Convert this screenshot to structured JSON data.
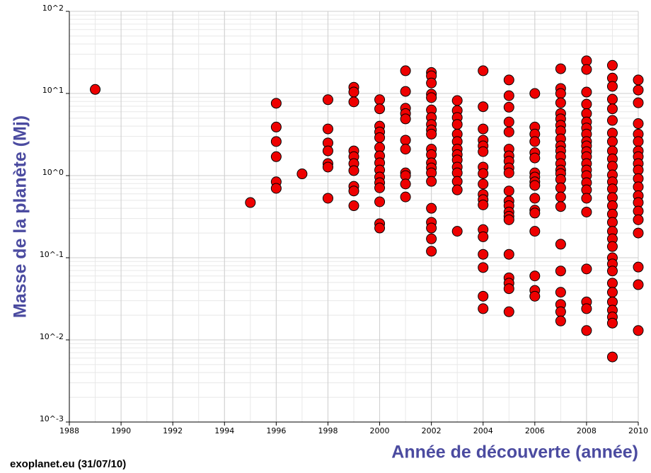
{
  "chart_data": {
    "type": "scatter",
    "xlabel": "Année de découverte (année)",
    "ylabel": "Masse de la planète (Mj)",
    "footer": "exoplanet.eu (31/07/10)",
    "color": "#ee0000",
    "ylog": true,
    "grid": true,
    "xlim": [
      1988,
      2010
    ],
    "ylim": [
      0.001,
      100
    ],
    "xticks": [
      1988,
      1990,
      1992,
      1994,
      1996,
      1998,
      2000,
      2002,
      2004,
      2006,
      2008,
      2010
    ],
    "yticks": [
      {
        "value": 0.001,
        "label": "10^-3"
      },
      {
        "value": 0.01,
        "label": "10^-2"
      },
      {
        "value": 0.1,
        "label": "10^-1"
      },
      {
        "value": 1,
        "label": "10^0"
      },
      {
        "value": 10,
        "label": "10^1"
      },
      {
        "value": 100,
        "label": "10^2"
      }
    ],
    "x": [
      1989,
      1995,
      1996,
      1996,
      1996,
      1996,
      1996,
      1996,
      1997,
      1998,
      1998,
      1998,
      1998,
      1998,
      1998,
      1998,
      1999,
      1999,
      1999,
      1999,
      1999,
      1999,
      1999,
      1999,
      1999,
      1999,
      2000,
      2000,
      2000,
      2000,
      2000,
      2000,
      2000,
      2000,
      2000,
      2000,
      2000,
      2000,
      2000,
      2000,
      2000,
      2001,
      2001,
      2001,
      2001,
      2001,
      2001,
      2001,
      2001,
      2001,
      2001,
      2001,
      2002,
      2002,
      2002,
      2002,
      2002,
      2002,
      2002,
      2002,
      2002,
      2002,
      2002,
      2002,
      2002,
      2002,
      2002,
      2002,
      2002,
      2002,
      2002,
      2002,
      2002,
      2003,
      2003,
      2003,
      2003,
      2003,
      2003,
      2003,
      2003,
      2003,
      2003,
      2003,
      2003,
      2003,
      2003,
      2004,
      2004,
      2004,
      2004,
      2004,
      2004,
      2004,
      2004,
      2004,
      2004,
      2004,
      2004,
      2004,
      2004,
      2004,
      2004,
      2004,
      2004,
      2005,
      2005,
      2005,
      2005,
      2005,
      2005,
      2005,
      2005,
      2005,
      2005,
      2005,
      2005,
      2005,
      2005,
      2005,
      2005,
      2005,
      2005,
      2005,
      2005,
      2005,
      2006,
      2006,
      2006,
      2006,
      2006,
      2006,
      2006,
      2006,
      2006,
      2006,
      2006,
      2006,
      2006,
      2006,
      2006,
      2006,
      2006,
      2007,
      2007,
      2007,
      2007,
      2007,
      2007,
      2007,
      2007,
      2007,
      2007,
      2007,
      2007,
      2007,
      2007,
      2007,
      2007,
      2007,
      2007,
      2007,
      2007,
      2007,
      2007,
      2007,
      2007,
      2007,
      2008,
      2008,
      2008,
      2008,
      2008,
      2008,
      2008,
      2008,
      2008,
      2008,
      2008,
      2008,
      2008,
      2008,
      2008,
      2008,
      2008,
      2008,
      2008,
      2008,
      2008,
      2008,
      2008,
      2009,
      2009,
      2009,
      2009,
      2009,
      2009,
      2009,
      2009,
      2009,
      2009,
      2009,
      2009,
      2009,
      2009,
      2009,
      2009,
      2009,
      2009,
      2009,
      2009,
      2009,
      2009,
      2009,
      2009,
      2009,
      2009,
      2009,
      2009,
      2009,
      2009,
      2009,
      2010,
      2010,
      2010,
      2010,
      2010,
      2010,
      2010,
      2010,
      2010,
      2010,
      2010,
      2010,
      2010,
      2010,
      2010,
      2010,
      2010,
      2010,
      2010,
      2010
    ],
    "values": [
      11.2,
      0.47,
      7.6,
      3.9,
      2.6,
      1.7,
      0.84,
      0.7,
      1.05,
      8.4,
      3.7,
      2.5,
      2.0,
      1.4,
      1.27,
      0.53,
      11.9,
      10.4,
      7.9,
      2.0,
      1.7,
      1.4,
      1.15,
      0.74,
      0.65,
      0.43,
      8.4,
      6.5,
      4.0,
      3.4,
      2.9,
      2.2,
      1.74,
      1.43,
      1.17,
      0.96,
      0.82,
      0.71,
      0.48,
      0.26,
      0.23,
      18.9,
      10.6,
      6.6,
      5.7,
      4.9,
      2.7,
      2.1,
      1.08,
      1.0,
      0.79,
      0.55,
      18,
      16.4,
      13.4,
      9.8,
      8.9,
      6.3,
      5.1,
      4.2,
      3.6,
      3.2,
      2.1,
      1.8,
      1.43,
      1.24,
      1.08,
      0.85,
      0.4,
      0.27,
      0.23,
      0.17,
      0.12,
      8.2,
      6.2,
      5.1,
      4.2,
      3.2,
      2.6,
      2.1,
      1.8,
      1.55,
      1.27,
      1.08,
      0.85,
      0.67,
      0.21,
      18.9,
      6.9,
      3.7,
      2.7,
      2.3,
      1.96,
      1.27,
      1.06,
      0.79,
      0.59,
      0.51,
      0.44,
      0.22,
      0.18,
      0.11,
      0.076,
      0.034,
      0.024,
      14.6,
      9.4,
      6.8,
      4.5,
      3.4,
      2.1,
      1.74,
      1.5,
      1.24,
      1.08,
      0.65,
      0.49,
      0.43,
      0.36,
      0.32,
      0.29,
      0.11,
      0.057,
      0.049,
      0.042,
      0.022,
      10,
      3.9,
      3.2,
      2.6,
      1.9,
      1.64,
      1.08,
      0.96,
      0.84,
      0.76,
      0.53,
      0.38,
      0.35,
      0.21,
      0.06,
      0.04,
      0.034,
      20,
      11.5,
      10,
      7.7,
      5.7,
      4.9,
      4.1,
      3.5,
      2.8,
      2.3,
      2.0,
      1.7,
      1.4,
      1.17,
      1.06,
      0.9,
      0.71,
      0.55,
      0.42,
      0.146,
      0.069,
      0.038,
      0.027,
      0.022,
      0.017,
      25,
      19.6,
      10.4,
      7.4,
      5.7,
      4.5,
      3.8,
      3.2,
      2.6,
      2.3,
      1.96,
      1.7,
      1.4,
      1.17,
      1.0,
      0.82,
      0.67,
      0.53,
      0.36,
      0.073,
      0.029,
      0.024,
      0.013,
      22,
      15.4,
      12.2,
      8.5,
      6.5,
      4.7,
      3.3,
      2.6,
      2.0,
      1.6,
      1.3,
      1.02,
      0.84,
      0.69,
      0.54,
      0.43,
      0.34,
      0.27,
      0.21,
      0.17,
      0.137,
      0.1,
      0.084,
      0.069,
      0.049,
      0.038,
      0.029,
      0.023,
      0.019,
      0.016,
      0.0062,
      14.6,
      11.0,
      7.7,
      4.3,
      3.2,
      2.6,
      2.0,
      1.7,
      1.4,
      1.17,
      0.92,
      0.73,
      0.57,
      0.47,
      0.37,
      0.29,
      0.2,
      0.077,
      0.047,
      0.013
    ]
  }
}
